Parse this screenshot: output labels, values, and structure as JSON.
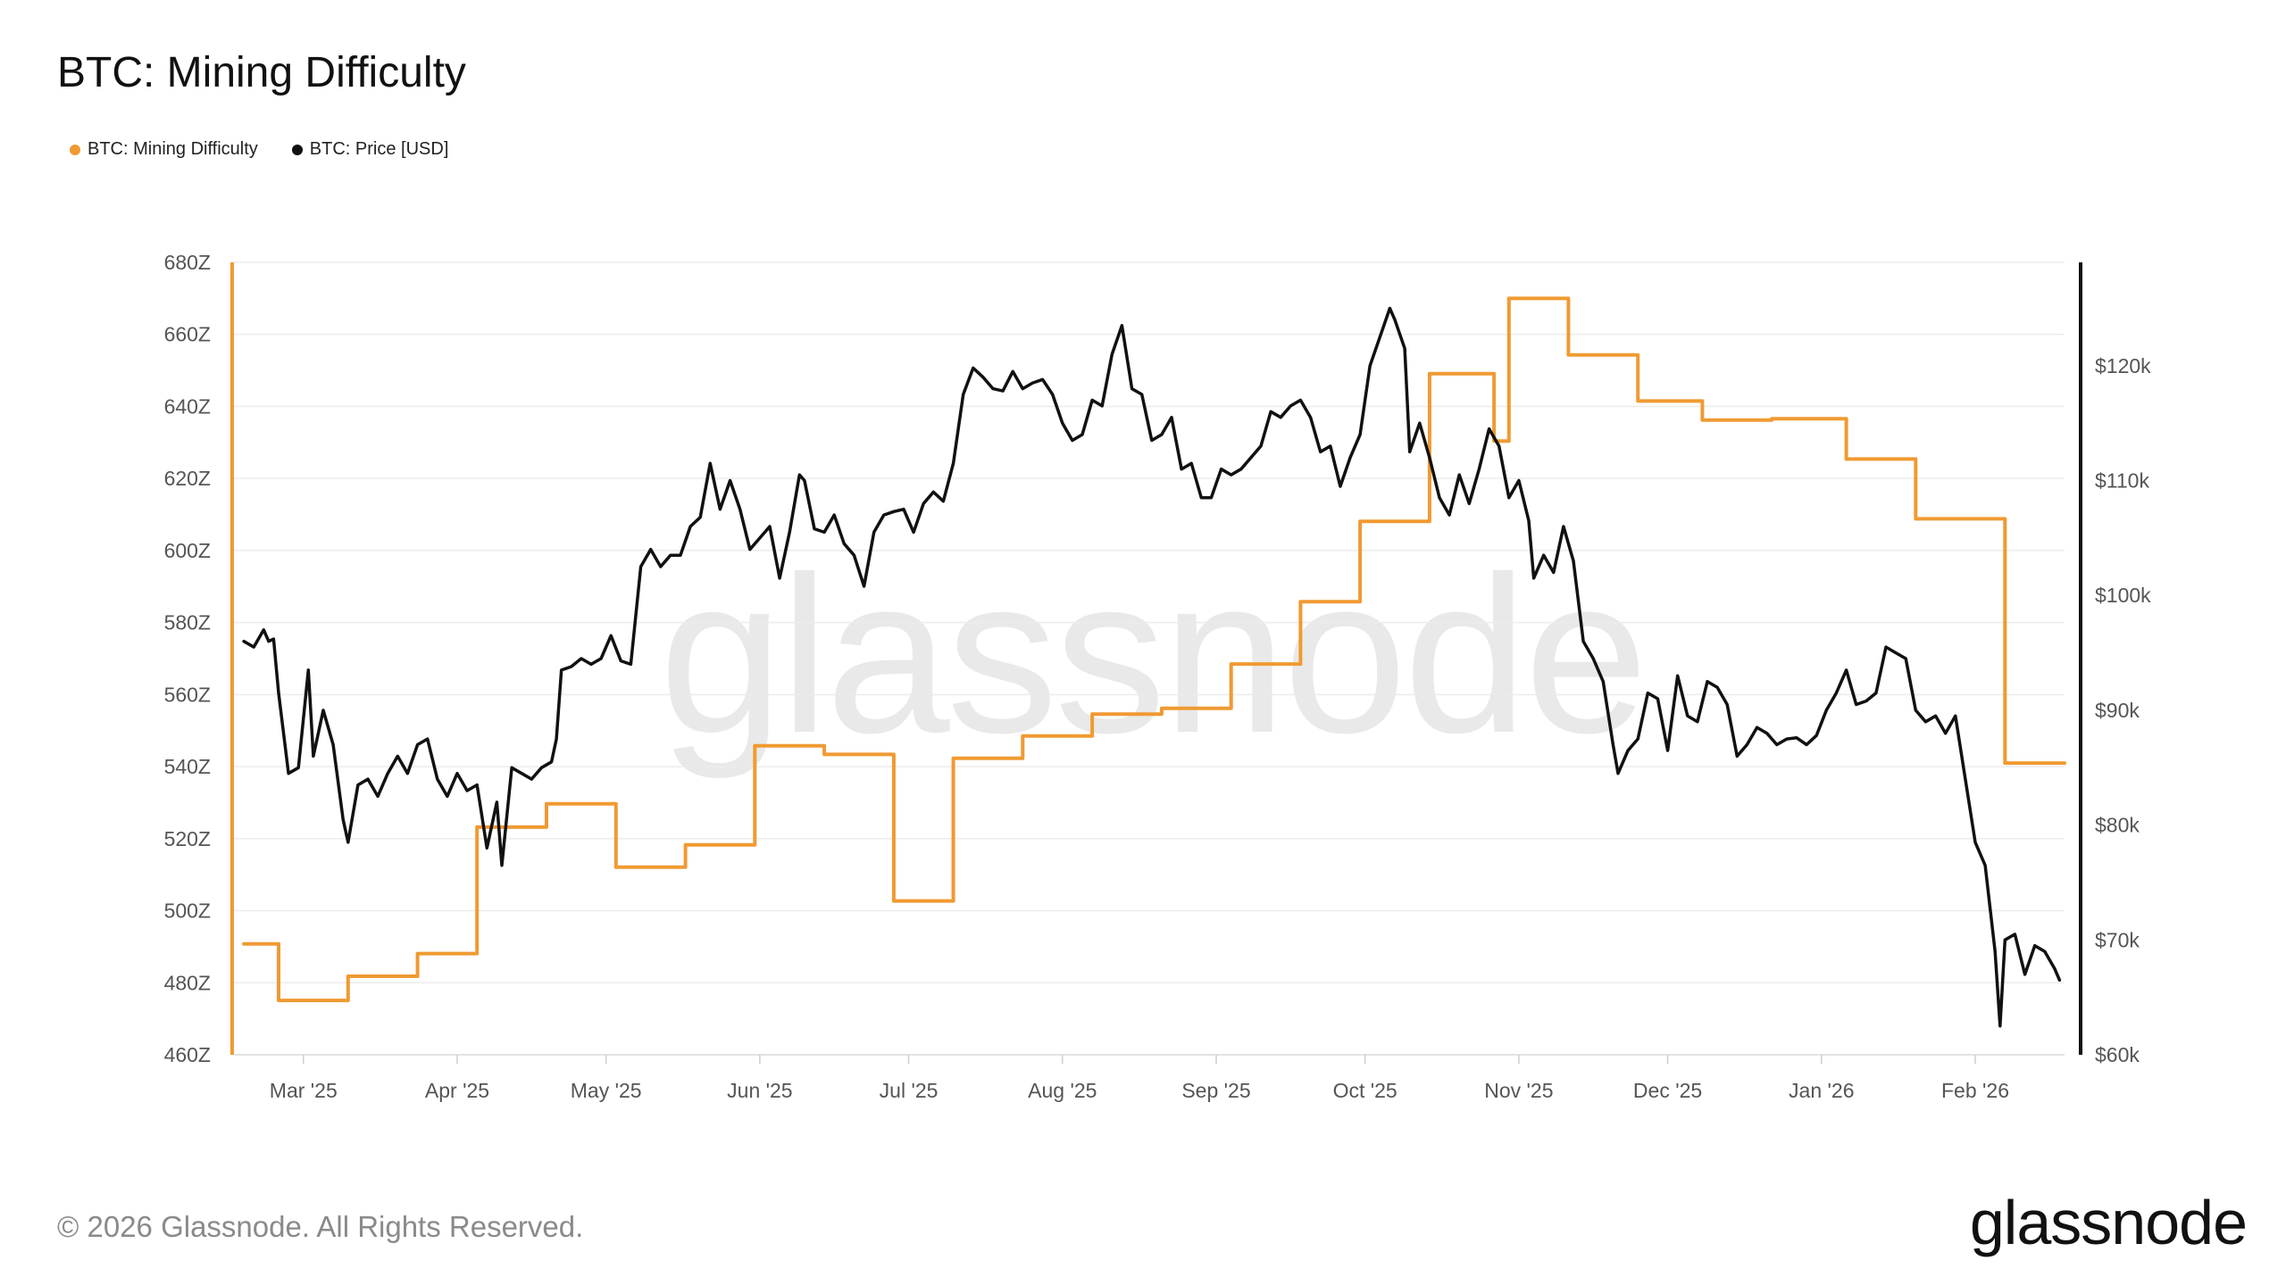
{
  "title": "BTC: Mining Difficulty",
  "legend": [
    {
      "label": "BTC: Mining Difficulty",
      "color": "#F09A32"
    },
    {
      "label": "BTC: Price [USD]",
      "color": "#111111"
    }
  ],
  "watermark": "glassnode",
  "footer": {
    "copyright": "© 2026 Glassnode. All Rights Reserved.",
    "logo": "glassnode"
  },
  "colors": {
    "difficulty": "#F09A32",
    "price": "#111111",
    "grid": "#ececec"
  },
  "chart_data": {
    "type": "line",
    "x_tick_labels": [
      "Mar '25",
      "Apr '25",
      "May '25",
      "Jun '25",
      "Jul '25",
      "Aug '25",
      "Sep '25",
      "Oct '25",
      "Nov '25",
      "Dec '25",
      "Jan '26",
      "Feb '26"
    ],
    "x_tick_dates": [
      "2025-03-01",
      "2025-04-01",
      "2025-05-01",
      "2025-06-01",
      "2025-07-01",
      "2025-08-01",
      "2025-09-01",
      "2025-10-01",
      "2025-11-01",
      "2025-12-01",
      "2026-01-01",
      "2026-02-01"
    ],
    "x_range": [
      "2025-02-15",
      "2026-02-19"
    ],
    "y_left": {
      "name": "BTC: Mining Difficulty",
      "range": [
        460,
        680
      ],
      "ticks": [
        460,
        480,
        500,
        520,
        540,
        560,
        580,
        600,
        620,
        640,
        660,
        680
      ],
      "tick_labels": [
        "460Z",
        "480Z",
        "500Z",
        "520Z",
        "540Z",
        "560Z",
        "580Z",
        "600Z",
        "620Z",
        "640Z",
        "660Z",
        "680Z"
      ]
    },
    "y_right": {
      "name": "BTC: Price [USD]",
      "range": [
        60000,
        129000
      ],
      "ticks": [
        60000,
        70000,
        80000,
        90000,
        100000,
        110000,
        120000
      ],
      "tick_labels": [
        "$60k",
        "$70k",
        "$80k",
        "$90k",
        "$100k",
        "$110k",
        "$120k"
      ]
    },
    "grid": true,
    "legend_position": "top-left",
    "series": [
      {
        "name": "BTC: Mining Difficulty",
        "axis": "left",
        "step": true,
        "points": [
          [
            "2025-02-17",
            490.8
          ],
          [
            "2025-02-24",
            475.1
          ],
          [
            "2025-03-10",
            481.8
          ],
          [
            "2025-03-24",
            488.1
          ],
          [
            "2025-04-05",
            523.2
          ],
          [
            "2025-04-19",
            529.7
          ],
          [
            "2025-05-03",
            512.1
          ],
          [
            "2025-05-17",
            518.3
          ],
          [
            "2025-05-31",
            545.8
          ],
          [
            "2025-06-14",
            543.4
          ],
          [
            "2025-06-28",
            502.7
          ],
          [
            "2025-07-10",
            542.3
          ],
          [
            "2025-07-24",
            548.5
          ],
          [
            "2025-08-07",
            554.6
          ],
          [
            "2025-08-21",
            556.2
          ],
          [
            "2025-09-04",
            568.5
          ],
          [
            "2025-09-18",
            585.8
          ],
          [
            "2025-09-30",
            608.1
          ],
          [
            "2025-10-14",
            649.1
          ],
          [
            "2025-10-27",
            630.4
          ],
          [
            "2025-10-30",
            670.0
          ],
          [
            "2025-11-11",
            654.3
          ],
          [
            "2025-11-25",
            641.5
          ],
          [
            "2025-12-08",
            636.2
          ],
          [
            "2025-12-22",
            636.6
          ],
          [
            "2026-01-06",
            625.4
          ],
          [
            "2026-01-20",
            608.8
          ],
          [
            "2026-02-07",
            541.0
          ],
          [
            "2026-02-19",
            541.0
          ]
        ]
      },
      {
        "name": "BTC: Price [USD]",
        "axis": "right",
        "step": false,
        "points": [
          [
            "2025-02-17",
            96000
          ],
          [
            "2025-02-19",
            95500
          ],
          [
            "2025-02-21",
            97000
          ],
          [
            "2025-02-22",
            96000
          ],
          [
            "2025-02-23",
            96200
          ],
          [
            "2025-02-24",
            91500
          ],
          [
            "2025-02-26",
            84500
          ],
          [
            "2025-02-28",
            85000
          ],
          [
            "2025-03-02",
            93500
          ],
          [
            "2025-03-03",
            86000
          ],
          [
            "2025-03-05",
            90000
          ],
          [
            "2025-03-07",
            87000
          ],
          [
            "2025-03-09",
            80500
          ],
          [
            "2025-03-10",
            78500
          ],
          [
            "2025-03-12",
            83500
          ],
          [
            "2025-03-14",
            84000
          ],
          [
            "2025-03-16",
            82500
          ],
          [
            "2025-03-18",
            84500
          ],
          [
            "2025-03-20",
            86000
          ],
          [
            "2025-03-22",
            84500
          ],
          [
            "2025-03-24",
            87000
          ],
          [
            "2025-03-26",
            87500
          ],
          [
            "2025-03-28",
            84000
          ],
          [
            "2025-03-30",
            82500
          ],
          [
            "2025-04-01",
            84500
          ],
          [
            "2025-04-03",
            83000
          ],
          [
            "2025-04-05",
            83500
          ],
          [
            "2025-04-07",
            78000
          ],
          [
            "2025-04-09",
            82000
          ],
          [
            "2025-04-10",
            76500
          ],
          [
            "2025-04-12",
            85000
          ],
          [
            "2025-04-14",
            84500
          ],
          [
            "2025-04-16",
            84000
          ],
          [
            "2025-04-18",
            85000
          ],
          [
            "2025-04-20",
            85500
          ],
          [
            "2025-04-21",
            87500
          ],
          [
            "2025-04-22",
            93500
          ],
          [
            "2025-04-24",
            93800
          ],
          [
            "2025-04-26",
            94500
          ],
          [
            "2025-04-28",
            94000
          ],
          [
            "2025-04-30",
            94500
          ],
          [
            "2025-05-02",
            96500
          ],
          [
            "2025-05-04",
            94300
          ],
          [
            "2025-05-06",
            94000
          ],
          [
            "2025-05-08",
            102500
          ],
          [
            "2025-05-10",
            104000
          ],
          [
            "2025-05-12",
            102500
          ],
          [
            "2025-05-14",
            103500
          ],
          [
            "2025-05-16",
            103500
          ],
          [
            "2025-05-18",
            106000
          ],
          [
            "2025-05-20",
            106800
          ],
          [
            "2025-05-22",
            111500
          ],
          [
            "2025-05-24",
            107500
          ],
          [
            "2025-05-26",
            110000
          ],
          [
            "2025-05-28",
            107500
          ],
          [
            "2025-05-30",
            104000
          ],
          [
            "2025-06-01",
            105000
          ],
          [
            "2025-06-03",
            106000
          ],
          [
            "2025-06-05",
            101500
          ],
          [
            "2025-06-07",
            105500
          ],
          [
            "2025-06-09",
            110500
          ],
          [
            "2025-06-10",
            110000
          ],
          [
            "2025-06-12",
            105800
          ],
          [
            "2025-06-14",
            105500
          ],
          [
            "2025-06-16",
            107000
          ],
          [
            "2025-06-18",
            104500
          ],
          [
            "2025-06-20",
            103500
          ],
          [
            "2025-06-22",
            100800
          ],
          [
            "2025-06-24",
            105500
          ],
          [
            "2025-06-26",
            107000
          ],
          [
            "2025-06-28",
            107300
          ],
          [
            "2025-06-30",
            107500
          ],
          [
            "2025-07-02",
            105500
          ],
          [
            "2025-07-04",
            108000
          ],
          [
            "2025-07-06",
            109000
          ],
          [
            "2025-07-08",
            108200
          ],
          [
            "2025-07-10",
            111500
          ],
          [
            "2025-07-12",
            117500
          ],
          [
            "2025-07-14",
            119800
          ],
          [
            "2025-07-16",
            119000
          ],
          [
            "2025-07-18",
            118000
          ],
          [
            "2025-07-20",
            117800
          ],
          [
            "2025-07-22",
            119500
          ],
          [
            "2025-07-24",
            118000
          ],
          [
            "2025-07-26",
            118500
          ],
          [
            "2025-07-28",
            118800
          ],
          [
            "2025-07-30",
            117500
          ],
          [
            "2025-08-01",
            115000
          ],
          [
            "2025-08-03",
            113500
          ],
          [
            "2025-08-05",
            114000
          ],
          [
            "2025-08-07",
            117000
          ],
          [
            "2025-08-09",
            116500
          ],
          [
            "2025-08-11",
            121000
          ],
          [
            "2025-08-13",
            123500
          ],
          [
            "2025-08-15",
            118000
          ],
          [
            "2025-08-17",
            117500
          ],
          [
            "2025-08-19",
            113500
          ],
          [
            "2025-08-21",
            114000
          ],
          [
            "2025-08-23",
            115500
          ],
          [
            "2025-08-25",
            111000
          ],
          [
            "2025-08-27",
            111500
          ],
          [
            "2025-08-29",
            108500
          ],
          [
            "2025-08-31",
            108500
          ],
          [
            "2025-09-02",
            111000
          ],
          [
            "2025-09-04",
            110500
          ],
          [
            "2025-09-06",
            111000
          ],
          [
            "2025-09-08",
            112000
          ],
          [
            "2025-09-10",
            113000
          ],
          [
            "2025-09-12",
            116000
          ],
          [
            "2025-09-14",
            115500
          ],
          [
            "2025-09-16",
            116500
          ],
          [
            "2025-09-18",
            117000
          ],
          [
            "2025-09-20",
            115500
          ],
          [
            "2025-09-22",
            112500
          ],
          [
            "2025-09-24",
            113000
          ],
          [
            "2025-09-26",
            109500
          ],
          [
            "2025-09-28",
            112000
          ],
          [
            "2025-09-30",
            114000
          ],
          [
            "2025-10-02",
            120000
          ],
          [
            "2025-10-04",
            122500
          ],
          [
            "2025-10-06",
            125000
          ],
          [
            "2025-10-07",
            124000
          ],
          [
            "2025-10-09",
            121500
          ],
          [
            "2025-10-10",
            112500
          ],
          [
            "2025-10-12",
            115000
          ],
          [
            "2025-10-14",
            112000
          ],
          [
            "2025-10-16",
            108500
          ],
          [
            "2025-10-18",
            107000
          ],
          [
            "2025-10-20",
            110500
          ],
          [
            "2025-10-22",
            108000
          ],
          [
            "2025-10-24",
            111000
          ],
          [
            "2025-10-26",
            114500
          ],
          [
            "2025-10-28",
            113000
          ],
          [
            "2025-10-30",
            108500
          ],
          [
            "2025-11-01",
            110000
          ],
          [
            "2025-11-03",
            106500
          ],
          [
            "2025-11-04",
            101500
          ],
          [
            "2025-11-06",
            103500
          ],
          [
            "2025-11-08",
            102000
          ],
          [
            "2025-11-10",
            106000
          ],
          [
            "2025-11-12",
            103000
          ],
          [
            "2025-11-14",
            96000
          ],
          [
            "2025-11-16",
            94500
          ],
          [
            "2025-11-18",
            92500
          ],
          [
            "2025-11-20",
            87000
          ],
          [
            "2025-11-21",
            84500
          ],
          [
            "2025-11-23",
            86500
          ],
          [
            "2025-11-25",
            87500
          ],
          [
            "2025-11-27",
            91500
          ],
          [
            "2025-11-29",
            91000
          ],
          [
            "2025-12-01",
            86500
          ],
          [
            "2025-12-03",
            93000
          ],
          [
            "2025-12-05",
            89500
          ],
          [
            "2025-12-07",
            89000
          ],
          [
            "2025-12-09",
            92500
          ],
          [
            "2025-12-11",
            92000
          ],
          [
            "2025-12-13",
            90500
          ],
          [
            "2025-12-15",
            86000
          ],
          [
            "2025-12-17",
            87000
          ],
          [
            "2025-12-19",
            88500
          ],
          [
            "2025-12-21",
            88000
          ],
          [
            "2025-12-23",
            87000
          ],
          [
            "2025-12-25",
            87500
          ],
          [
            "2025-12-27",
            87600
          ],
          [
            "2025-12-29",
            87000
          ],
          [
            "2025-12-31",
            87800
          ],
          [
            "2026-01-02",
            90000
          ],
          [
            "2026-01-04",
            91500
          ],
          [
            "2026-01-06",
            93500
          ],
          [
            "2026-01-08",
            90500
          ],
          [
            "2026-01-10",
            90800
          ],
          [
            "2026-01-12",
            91500
          ],
          [
            "2026-01-14",
            95500
          ],
          [
            "2026-01-16",
            95000
          ],
          [
            "2026-01-18",
            94500
          ],
          [
            "2026-01-20",
            90000
          ],
          [
            "2026-01-22",
            89000
          ],
          [
            "2026-01-24",
            89500
          ],
          [
            "2026-01-26",
            88000
          ],
          [
            "2026-01-28",
            89500
          ],
          [
            "2026-01-30",
            84000
          ],
          [
            "2026-02-01",
            78500
          ],
          [
            "2026-02-03",
            76500
          ],
          [
            "2026-02-05",
            69000
          ],
          [
            "2026-02-06",
            62500
          ],
          [
            "2026-02-07",
            70000
          ],
          [
            "2026-02-09",
            70500
          ],
          [
            "2026-02-11",
            67000
          ],
          [
            "2026-02-13",
            69500
          ],
          [
            "2026-02-15",
            69000
          ],
          [
            "2026-02-17",
            67500
          ],
          [
            "2026-02-18",
            66500
          ]
        ]
      }
    ]
  }
}
